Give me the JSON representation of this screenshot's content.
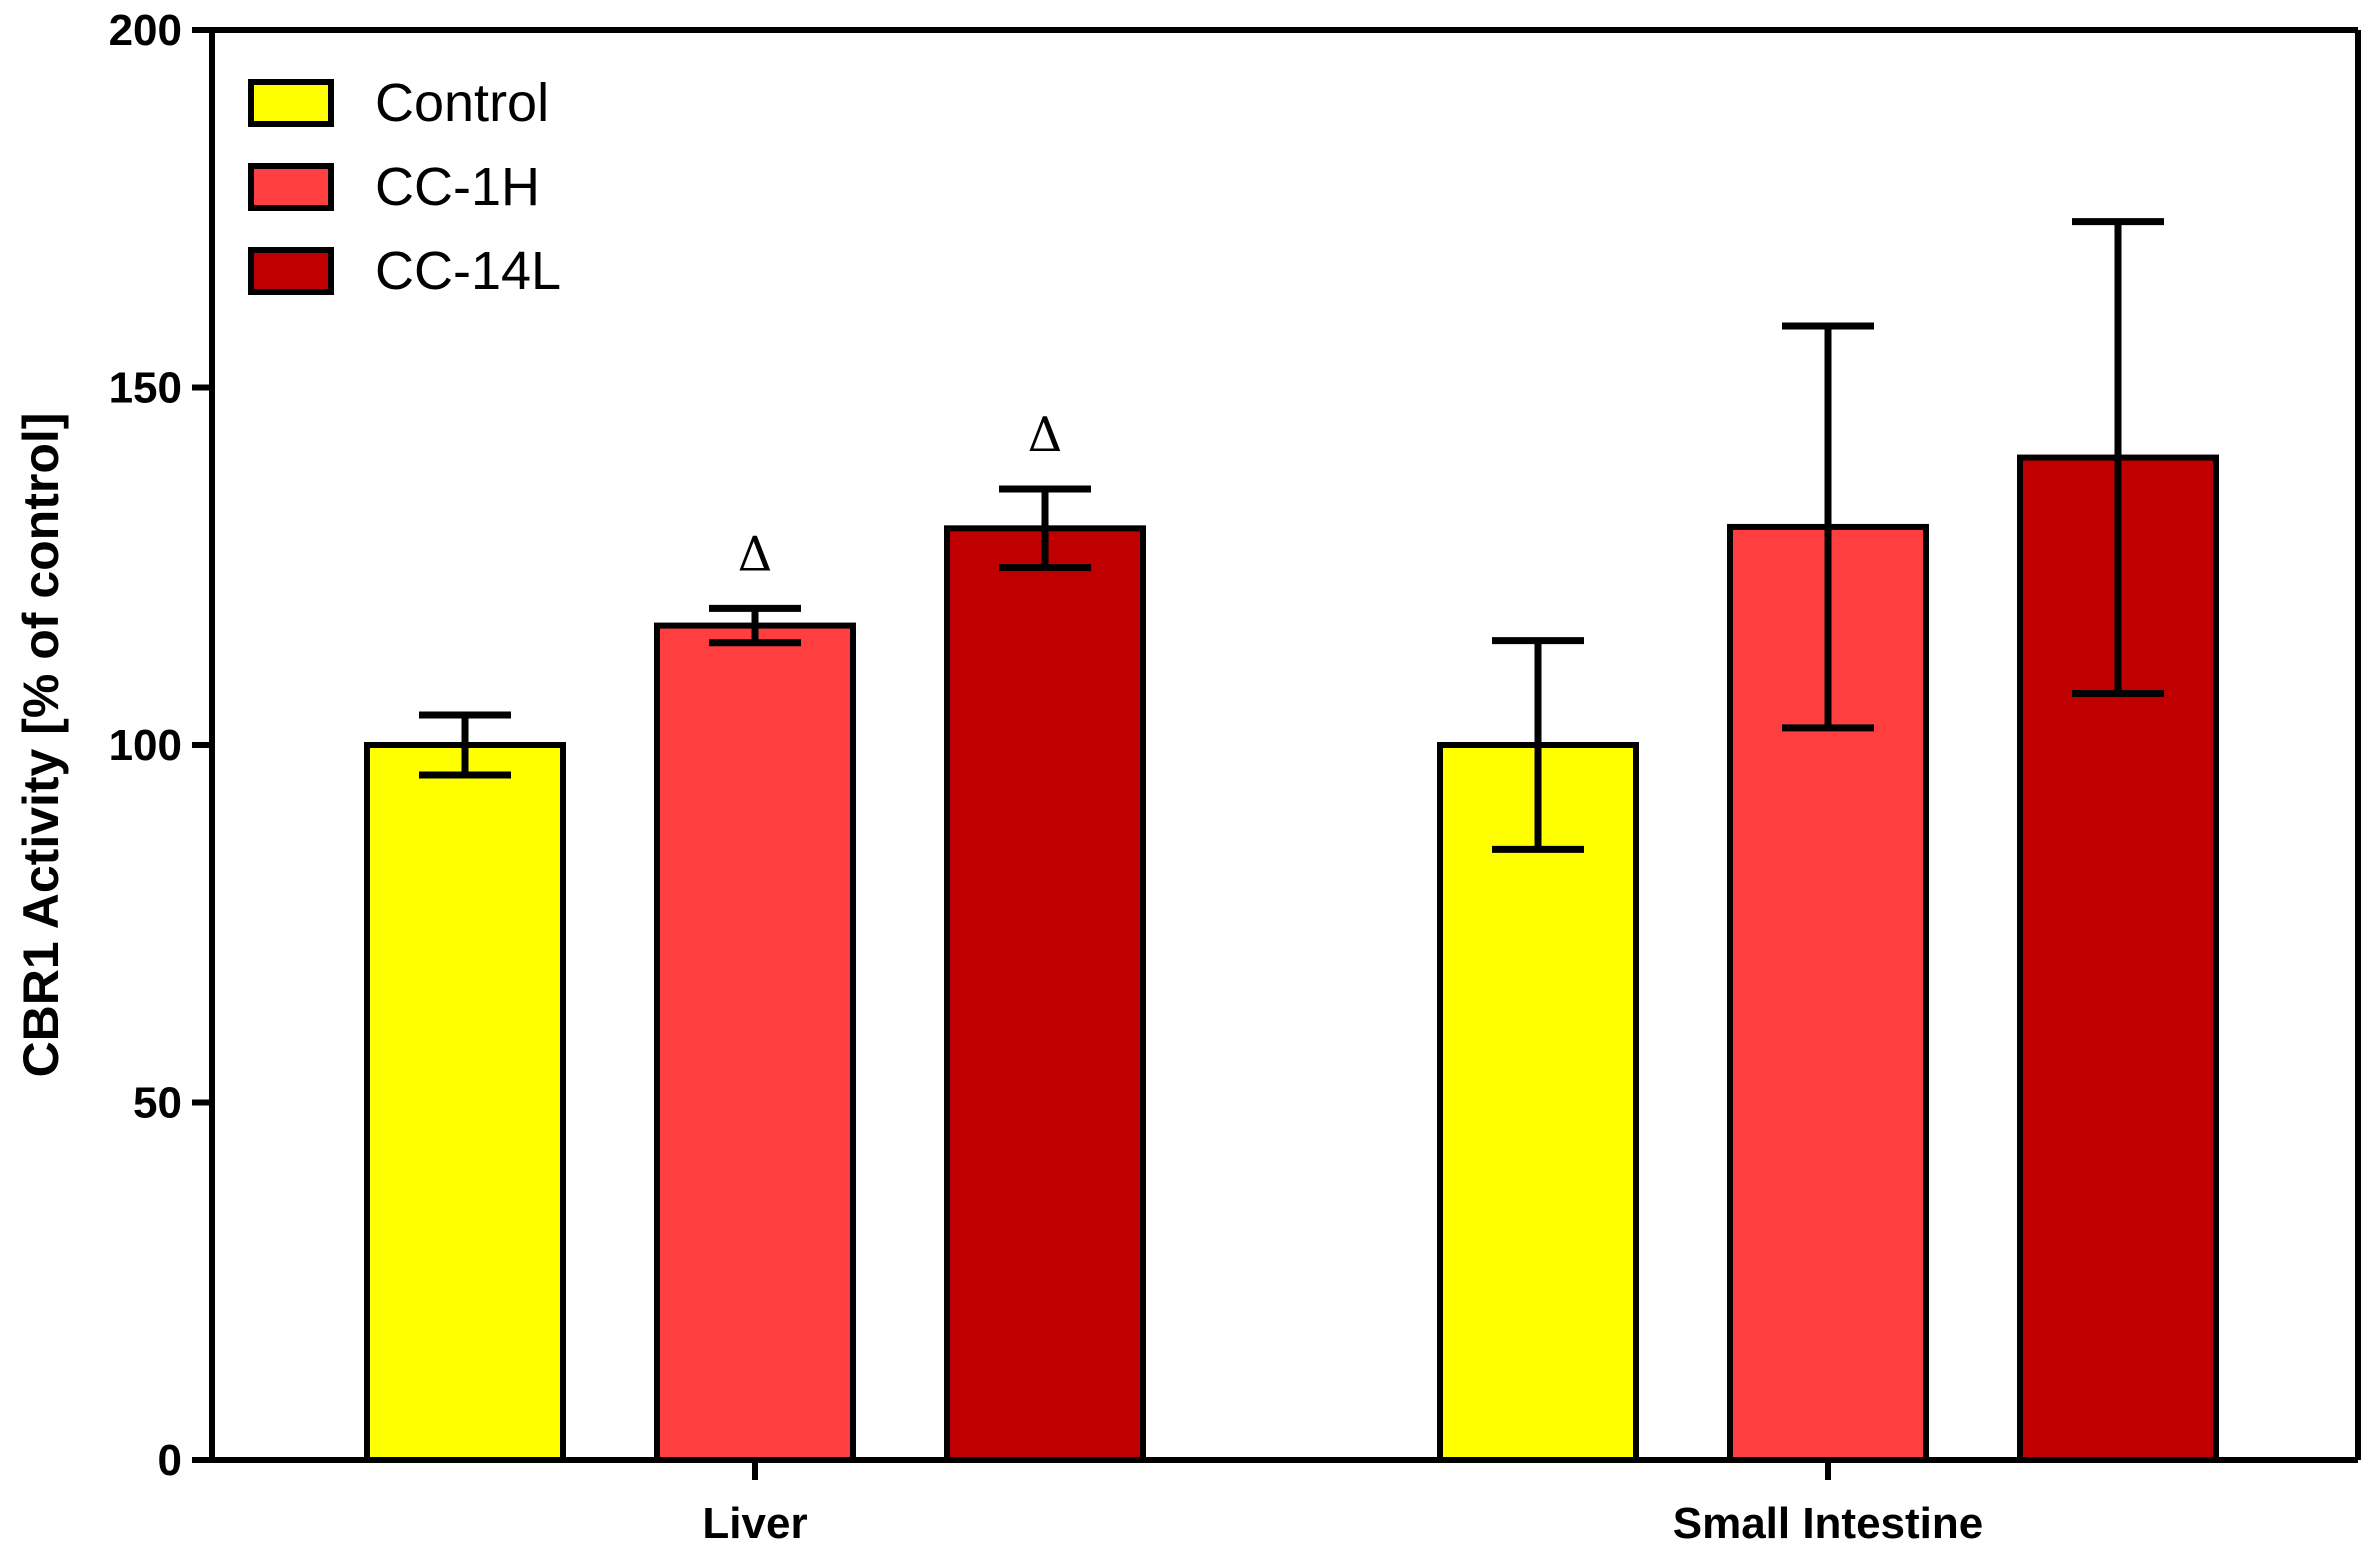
{
  "chart_data": {
    "type": "bar",
    "title": "",
    "xlabel": "",
    "ylabel": "CBR1 Activity [% of control]",
    "ylim": [
      0,
      200
    ],
    "yticks": [
      0,
      50,
      100,
      150,
      200
    ],
    "grid": false,
    "legend_position": "top-left",
    "categories": [
      "Liver",
      "Small Intestine"
    ],
    "series": [
      {
        "name": "Control",
        "color": "#ffff00",
        "values": [
          100,
          100
        ],
        "errors": [
          4.2,
          14.6
        ]
      },
      {
        "name": "CC-1H",
        "color": "#ff3f3f",
        "values": [
          116.7,
          130.5
        ],
        "errors": [
          2.4,
          28.1
        ]
      },
      {
        "name": "CC-14L",
        "color": "#c00000",
        "values": [
          130.3,
          140.2
        ],
        "errors": [
          5.5,
          33.0
        ]
      }
    ],
    "annotations": [
      {
        "text": "Δ",
        "category": 0,
        "series": 1,
        "y": 119.1
      },
      {
        "text": "Δ",
        "category": 0,
        "series": 2,
        "y": 135.8
      }
    ]
  }
}
